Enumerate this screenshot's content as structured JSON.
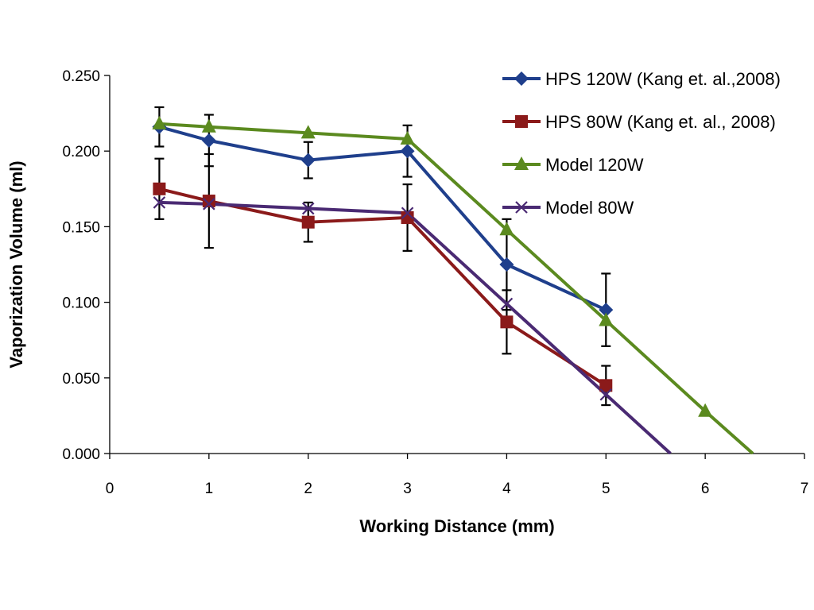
{
  "chart_data": {
    "type": "line",
    "title": "",
    "xlabel": "Working Distance (mm)",
    "ylabel": "Vaporization Volume (ml)",
    "xlim": [
      0,
      7
    ],
    "ylim": [
      0,
      0.25
    ],
    "x_ticks": [
      "0",
      "1",
      "2",
      "3",
      "4",
      "5",
      "6",
      "7"
    ],
    "y_ticks": [
      "0.000",
      "0.050",
      "0.100",
      "0.150",
      "0.200",
      "0.250"
    ],
    "grid": false,
    "legend_position": "top-right",
    "series": [
      {
        "name": "HPS 120W (Kang et. al.,2008)",
        "color": "#1F3F8C",
        "marker": "diamond",
        "x": [
          0.5,
          1,
          2,
          3,
          4,
          5
        ],
        "y": [
          0.216,
          0.207,
          0.194,
          0.2,
          0.125,
          0.095
        ],
        "error": [
          0.013,
          0.017,
          0.012,
          0.017,
          0.03,
          0.024
        ]
      },
      {
        "name": "HPS 80W (Kang et. al., 2008)",
        "color": "#8B1A1A",
        "marker": "square",
        "x": [
          0.5,
          1,
          2,
          3,
          4,
          5
        ],
        "y": [
          0.175,
          0.167,
          0.153,
          0.156,
          0.087,
          0.045
        ],
        "error": [
          0.02,
          0.031,
          0.013,
          0.022,
          0.021,
          0.013
        ]
      },
      {
        "name": "Model 120W",
        "color": "#5B8A1F",
        "marker": "triangle",
        "x": [
          0.5,
          1,
          2,
          3,
          4,
          5,
          6,
          6.48
        ],
        "y": [
          0.218,
          0.216,
          0.212,
          0.208,
          0.148,
          0.088,
          0.028,
          0.0
        ]
      },
      {
        "name": "Model 80W",
        "color": "#4A2A73",
        "marker": "x",
        "x": [
          0.5,
          1,
          2,
          3,
          4,
          5,
          5.65
        ],
        "y": [
          0.166,
          0.165,
          0.162,
          0.159,
          0.099,
          0.039,
          0.0
        ]
      }
    ]
  }
}
